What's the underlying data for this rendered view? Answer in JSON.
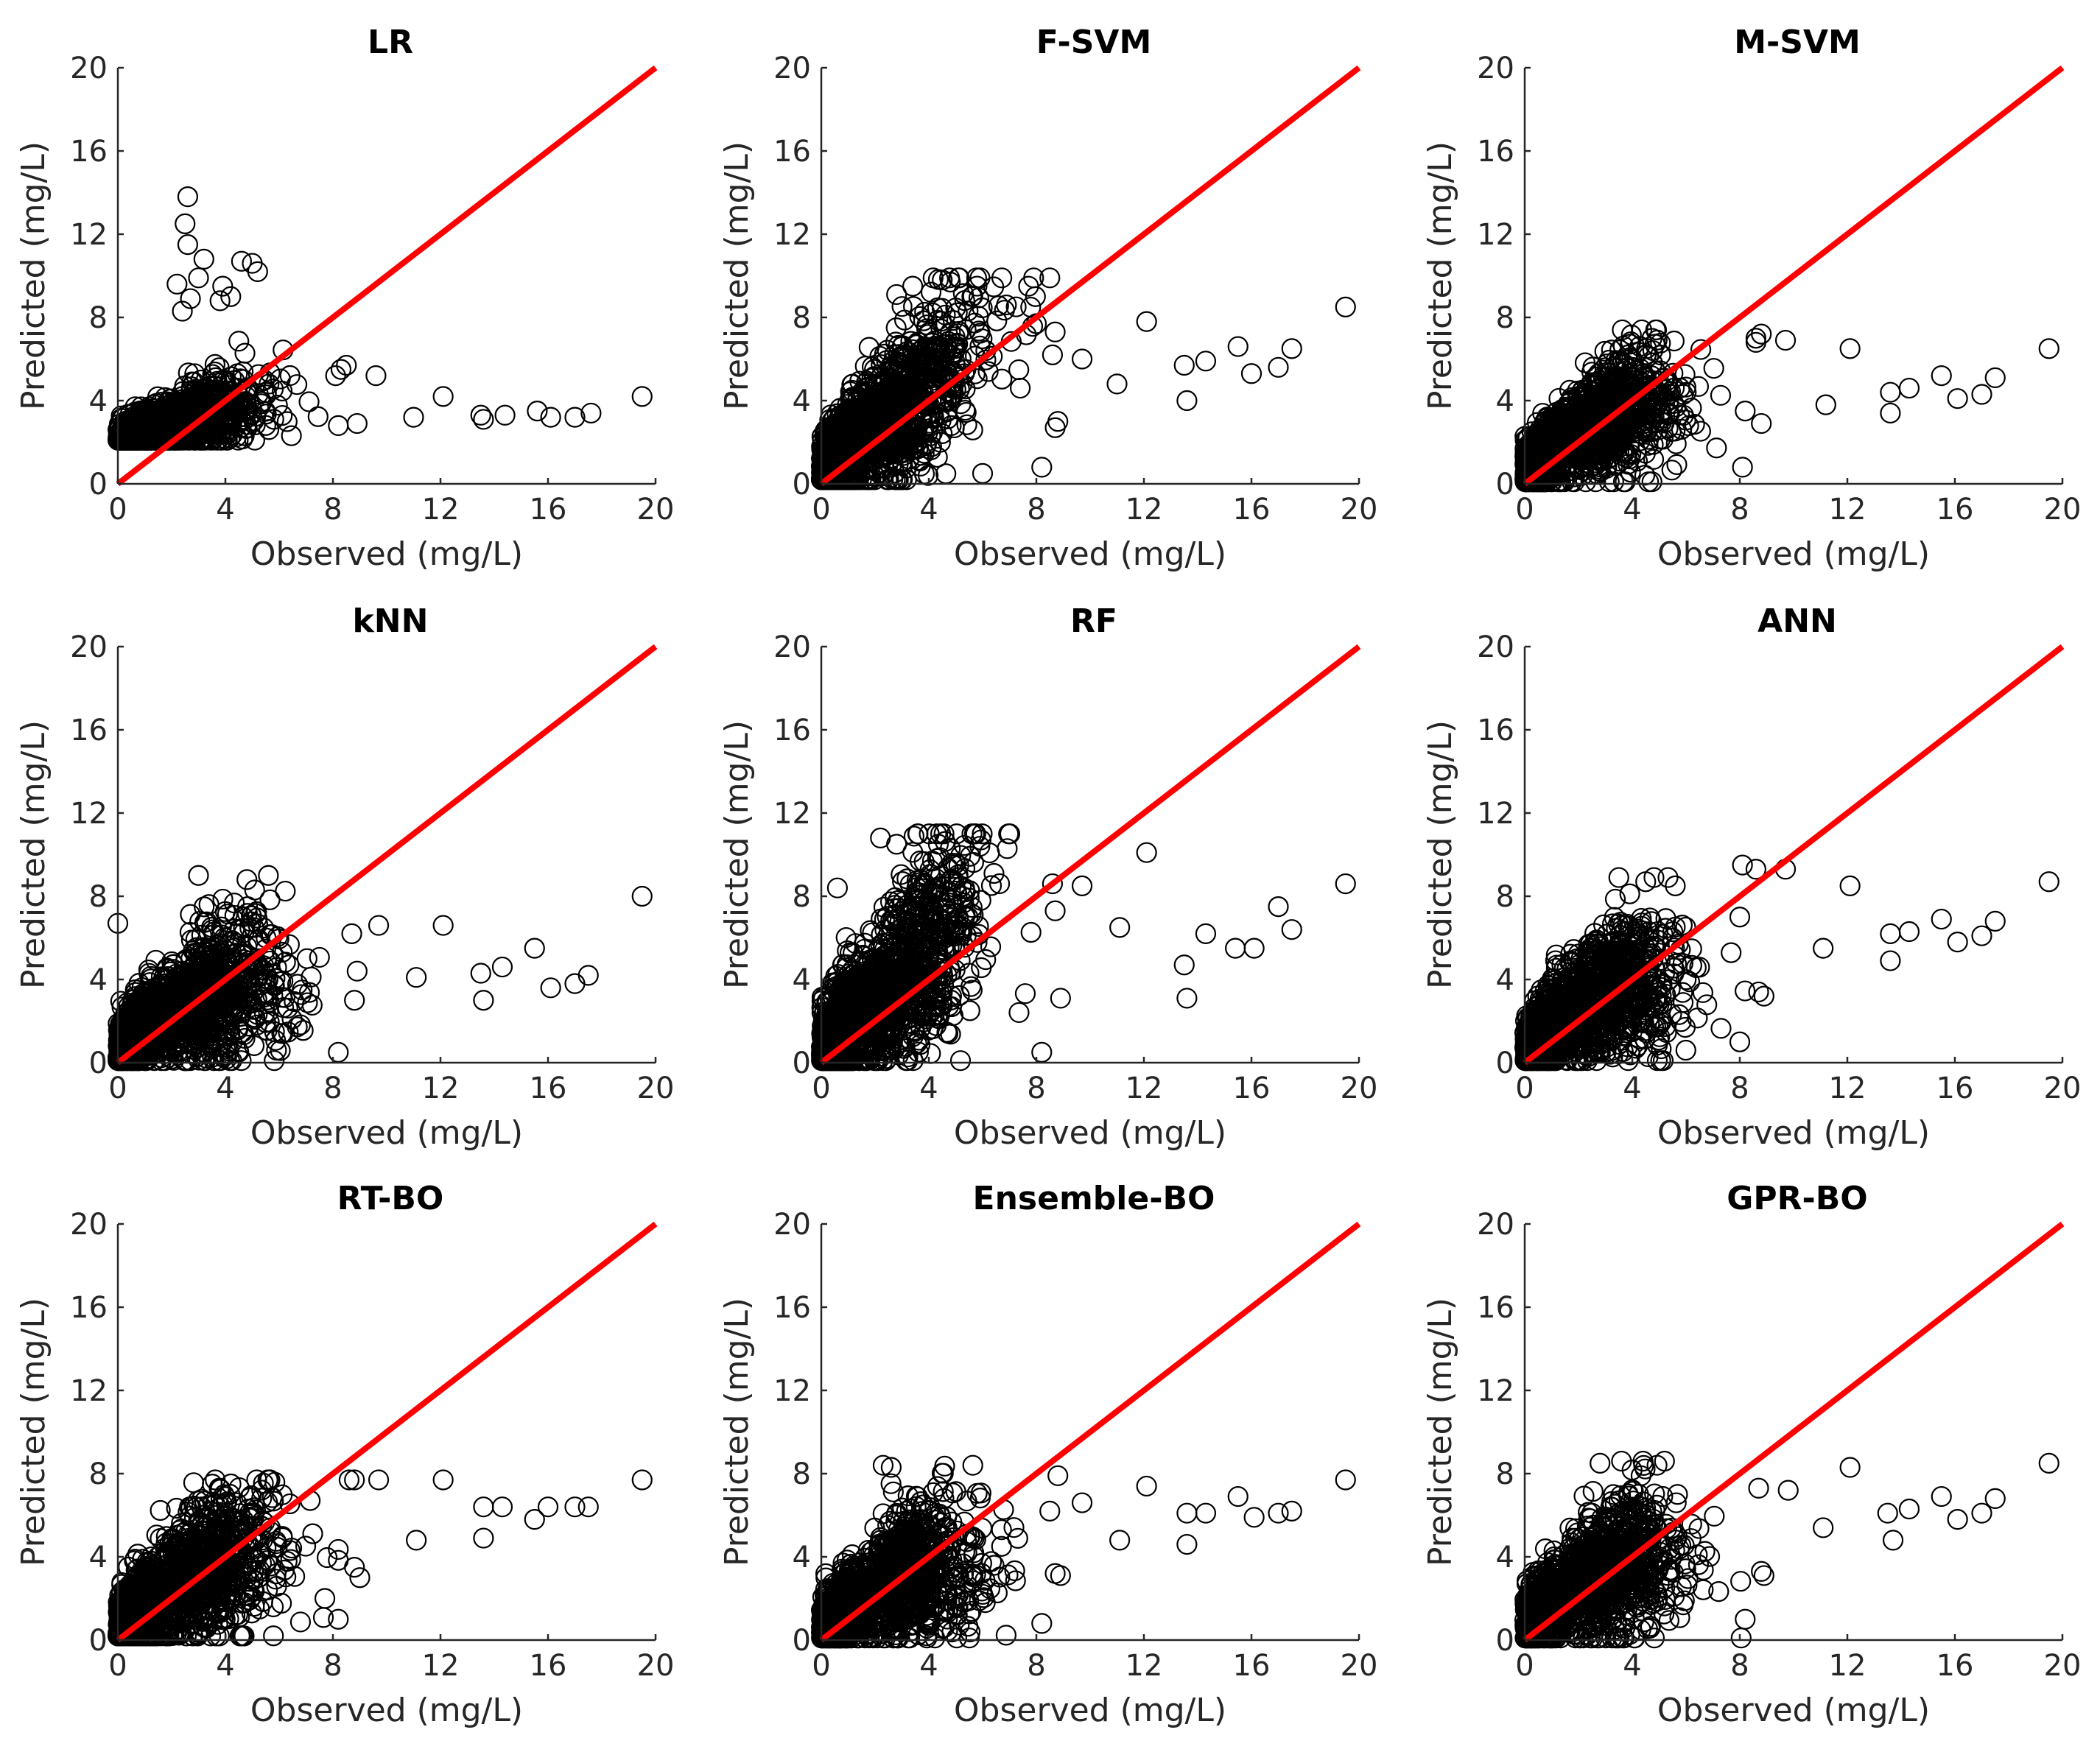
{
  "figure": {
    "marker": "open-circle",
    "marker_color": "#000000",
    "reference_line_color": "#ff0000"
  },
  "chart_data": [
    {
      "type": "scatter",
      "title": "LR",
      "xlabel": "Observed (mg/L)",
      "ylabel": "Predicted (mg/L)",
      "xlim": [
        0,
        20
      ],
      "ylim": [
        0,
        20
      ],
      "xticks": [
        "0",
        "4",
        "8",
        "12",
        "16",
        "20"
      ],
      "yticks": [
        "0",
        "4",
        "8",
        "12",
        "16",
        "20"
      ],
      "reference_line": {
        "x": [
          0,
          20
        ],
        "y": [
          0,
          20
        ]
      },
      "cloud": {
        "seed": 11,
        "n": 1300,
        "xcenter": 2.2,
        "xspread": 1.4,
        "xmax": 8.8,
        "base": 2.2,
        "slope": 0.35,
        "spread": 0.7,
        "ymin": 2.1,
        "ymax": 7.0,
        "model": "linear"
      },
      "points": [
        [
          2.6,
          13.8
        ],
        [
          2.5,
          12.5
        ],
        [
          2.6,
          11.5
        ],
        [
          3.2,
          10.8
        ],
        [
          4.6,
          10.7
        ],
        [
          5.0,
          10.6
        ],
        [
          5.2,
          10.2
        ],
        [
          3.0,
          9.9
        ],
        [
          3.9,
          9.5
        ],
        [
          2.2,
          9.6
        ],
        [
          2.7,
          8.9
        ],
        [
          2.4,
          8.3
        ],
        [
          3.8,
          8.8
        ],
        [
          4.2,
          9.0
        ],
        [
          8.3,
          5.5
        ],
        [
          8.5,
          5.7
        ],
        [
          8.1,
          5.2
        ],
        [
          9.6,
          5.2
        ],
        [
          11.0,
          3.2
        ],
        [
          12.1,
          4.2
        ],
        [
          13.5,
          3.3
        ],
        [
          13.6,
          3.1
        ],
        [
          14.4,
          3.3
        ],
        [
          15.6,
          3.5
        ],
        [
          16.1,
          3.2
        ],
        [
          17.0,
          3.2
        ],
        [
          17.6,
          3.4
        ],
        [
          19.5,
          4.2
        ],
        [
          8.2,
          2.8
        ],
        [
          8.9,
          2.9
        ]
      ]
    },
    {
      "type": "scatter",
      "title": "F-SVM",
      "xlabel": "Observed (mg/L)",
      "ylabel": "Predicted (mg/L)",
      "xlim": [
        0,
        20
      ],
      "ylim": [
        0,
        20
      ],
      "xticks": [
        "0",
        "4",
        "8",
        "12",
        "16",
        "20"
      ],
      "yticks": [
        "0",
        "4",
        "8",
        "12",
        "16",
        "20"
      ],
      "reference_line": {
        "x": [
          0,
          20
        ],
        "y": [
          0,
          20
        ]
      },
      "cloud": {
        "seed": 23,
        "n": 1400,
        "xcenter": 2.5,
        "xspread": 1.6,
        "xmax": 8.5,
        "base": 0.8,
        "slope": 1.0,
        "spread": 1.5,
        "ymin": 0.2,
        "ymax": 9.9,
        "model": "linear"
      },
      "points": [
        [
          4.5,
          9.8
        ],
        [
          4.8,
          9.7
        ],
        [
          3.4,
          9.5
        ],
        [
          5.6,
          9.0
        ],
        [
          2.8,
          9.1
        ],
        [
          8.7,
          7.3
        ],
        [
          8.0,
          7.7
        ],
        [
          8.6,
          6.2
        ],
        [
          9.7,
          6.0
        ],
        [
          11.0,
          4.8
        ],
        [
          12.1,
          7.8
        ],
        [
          13.5,
          5.7
        ],
        [
          13.6,
          4.0
        ],
        [
          14.3,
          5.9
        ],
        [
          15.5,
          6.6
        ],
        [
          16.0,
          5.3
        ],
        [
          17.0,
          5.6
        ],
        [
          17.5,
          6.5
        ],
        [
          19.5,
          8.5
        ],
        [
          8.2,
          0.8
        ],
        [
          8.7,
          2.7
        ],
        [
          8.8,
          3.0
        ],
        [
          6.0,
          0.5
        ],
        [
          7.4,
          4.6
        ]
      ]
    },
    {
      "type": "scatter",
      "title": "M-SVM",
      "xlabel": "Observed (mg/L)",
      "ylabel": "Predicted (mg/L)",
      "xlim": [
        0,
        20
      ],
      "ylim": [
        0,
        20
      ],
      "xticks": [
        "0",
        "4",
        "8",
        "12",
        "16",
        "20"
      ],
      "yticks": [
        "0",
        "4",
        "8",
        "12",
        "16",
        "20"
      ],
      "reference_line": {
        "x": [
          0,
          20
        ],
        "y": [
          0,
          20
        ]
      },
      "cloud": {
        "seed": 37,
        "n": 1400,
        "xcenter": 2.4,
        "xspread": 1.5,
        "xmax": 8.5,
        "base": 0.6,
        "slope": 1.2,
        "spread": 1.2,
        "ymin": 0.1,
        "ymax": 7.4,
        "model": "sat"
      },
      "points": [
        [
          8.6,
          6.8
        ],
        [
          8.8,
          7.2
        ],
        [
          8.6,
          7.0
        ],
        [
          9.7,
          6.9
        ],
        [
          11.2,
          3.8
        ],
        [
          12.1,
          6.5
        ],
        [
          13.6,
          4.4
        ],
        [
          13.6,
          3.4
        ],
        [
          14.3,
          4.6
        ],
        [
          15.5,
          5.2
        ],
        [
          16.1,
          4.1
        ],
        [
          17.0,
          4.3
        ],
        [
          17.5,
          5.1
        ],
        [
          19.5,
          6.5
        ],
        [
          8.1,
          0.8
        ],
        [
          8.8,
          2.9
        ],
        [
          8.2,
          3.5
        ]
      ]
    },
    {
      "type": "scatter",
      "title": "kNN",
      "xlabel": "Observed (mg/L)",
      "ylabel": "Predicted (mg/L)",
      "xlim": [
        0,
        20
      ],
      "ylim": [
        0,
        20
      ],
      "xticks": [
        "0",
        "4",
        "8",
        "12",
        "16",
        "20"
      ],
      "yticks": [
        "0",
        "4",
        "8",
        "12",
        "16",
        "20"
      ],
      "reference_line": {
        "x": [
          0,
          20
        ],
        "y": [
          0,
          20
        ]
      },
      "cloud": {
        "seed": 41,
        "n": 1500,
        "xcenter": 2.5,
        "xspread": 1.6,
        "xmax": 8.5,
        "base": 0.7,
        "slope": 1.1,
        "spread": 1.3,
        "ymin": 0.1,
        "ymax": 9.0,
        "model": "sat"
      },
      "points": [
        [
          0.0,
          6.7
        ],
        [
          4.8,
          8.8
        ],
        [
          5.6,
          9.0
        ],
        [
          3.0,
          9.0
        ],
        [
          8.7,
          6.2
        ],
        [
          8.9,
          4.4
        ],
        [
          9.7,
          6.6
        ],
        [
          11.1,
          4.1
        ],
        [
          12.1,
          6.6
        ],
        [
          13.5,
          4.3
        ],
        [
          13.6,
          3.0
        ],
        [
          14.3,
          4.6
        ],
        [
          15.5,
          5.5
        ],
        [
          16.1,
          3.6
        ],
        [
          17.0,
          3.8
        ],
        [
          17.5,
          4.2
        ],
        [
          19.5,
          8.0
        ],
        [
          8.2,
          0.5
        ],
        [
          8.8,
          3.0
        ],
        [
          5.9,
          0.6
        ]
      ]
    },
    {
      "type": "scatter",
      "title": "RF",
      "xlabel": "Observed (mg/L)",
      "ylabel": "Predicted (mg/L)",
      "xlim": [
        0,
        20
      ],
      "ylim": [
        0,
        20
      ],
      "xticks": [
        "0",
        "4",
        "8",
        "12",
        "16",
        "20"
      ],
      "yticks": [
        "0",
        "4",
        "8",
        "12",
        "16",
        "20"
      ],
      "reference_line": {
        "x": [
          0,
          20
        ],
        "y": [
          0,
          20
        ]
      },
      "cloud": {
        "seed": 53,
        "n": 1500,
        "xcenter": 2.5,
        "xspread": 1.6,
        "xmax": 8.5,
        "base": 0.6,
        "slope": 1.2,
        "spread": 1.9,
        "ymin": 0.1,
        "ymax": 11.0,
        "model": "linear"
      },
      "points": [
        [
          0.6,
          8.4
        ],
        [
          2.2,
          10.8
        ],
        [
          3.6,
          11.0
        ],
        [
          5.9,
          10.4
        ],
        [
          2.8,
          10.5
        ],
        [
          4.8,
          10.3
        ],
        [
          8.6,
          8.6
        ],
        [
          9.7,
          8.5
        ],
        [
          8.7,
          7.3
        ],
        [
          11.1,
          6.5
        ],
        [
          12.1,
          10.1
        ],
        [
          13.5,
          4.7
        ],
        [
          13.6,
          3.1
        ],
        [
          14.3,
          6.2
        ],
        [
          15.4,
          5.5
        ],
        [
          16.1,
          5.5
        ],
        [
          17.0,
          7.5
        ],
        [
          17.5,
          6.4
        ],
        [
          19.5,
          8.6
        ],
        [
          8.2,
          0.5
        ],
        [
          8.9,
          3.1
        ]
      ]
    },
    {
      "type": "scatter",
      "title": "ANN",
      "xlabel": "Observed (mg/L)",
      "ylabel": "Predicted (mg/L)",
      "xlim": [
        0,
        20
      ],
      "ylim": [
        0,
        20
      ],
      "xticks": [
        "0",
        "4",
        "8",
        "12",
        "16",
        "20"
      ],
      "yticks": [
        "0",
        "4",
        "8",
        "12",
        "16",
        "20"
      ],
      "reference_line": {
        "x": [
          0,
          20
        ],
        "y": [
          0,
          20
        ]
      },
      "cloud": {
        "seed": 67,
        "n": 1400,
        "xcenter": 2.5,
        "xspread": 1.5,
        "xmax": 8.5,
        "base": 0.7,
        "slope": 1.2,
        "spread": 1.4,
        "ymin": 0.1,
        "ymax": 8.9,
        "model": "sat"
      },
      "points": [
        [
          3.5,
          8.9
        ],
        [
          4.5,
          8.7
        ],
        [
          5.6,
          8.5
        ],
        [
          8.0,
          7.0
        ],
        [
          8.1,
          9.5
        ],
        [
          8.6,
          9.3
        ],
        [
          9.7,
          9.3
        ],
        [
          11.1,
          5.5
        ],
        [
          12.1,
          8.5
        ],
        [
          13.6,
          6.2
        ],
        [
          13.6,
          4.9
        ],
        [
          14.3,
          6.3
        ],
        [
          15.5,
          6.9
        ],
        [
          16.1,
          5.8
        ],
        [
          17.0,
          6.1
        ],
        [
          17.5,
          6.8
        ],
        [
          19.5,
          8.7
        ],
        [
          8.0,
          1.0
        ],
        [
          8.7,
          3.4
        ],
        [
          8.9,
          3.2
        ]
      ]
    },
    {
      "type": "scatter",
      "title": "RT-BO",
      "xlabel": "Observed (mg/L)",
      "ylabel": "Predicted (mg/L)",
      "xlim": [
        0,
        20
      ],
      "ylim": [
        0,
        20
      ],
      "xticks": [
        "0",
        "4",
        "8",
        "12",
        "16",
        "20"
      ],
      "yticks": [
        "0",
        "4",
        "8",
        "12",
        "16",
        "20"
      ],
      "reference_line": {
        "x": [
          0,
          20
        ],
        "y": [
          0,
          20
        ]
      },
      "cloud": {
        "seed": 79,
        "n": 1400,
        "xcenter": 2.5,
        "xspread": 1.5,
        "xmax": 8.2,
        "base": 0.6,
        "slope": 1.2,
        "spread": 1.4,
        "ymin": 0.2,
        "ymax": 7.7,
        "model": "sat"
      },
      "points": [
        [
          8.6,
          7.7
        ],
        [
          8.8,
          7.7
        ],
        [
          9.7,
          7.7
        ],
        [
          11.1,
          4.8
        ],
        [
          12.1,
          7.7
        ],
        [
          13.6,
          6.4
        ],
        [
          13.6,
          4.9
        ],
        [
          14.3,
          6.4
        ],
        [
          15.5,
          5.8
        ],
        [
          16.0,
          6.4
        ],
        [
          17.0,
          6.4
        ],
        [
          17.5,
          6.4
        ],
        [
          19.5,
          7.7
        ],
        [
          8.2,
          1.0
        ],
        [
          8.8,
          3.5
        ],
        [
          9.0,
          3.0
        ],
        [
          7.7,
          2.0
        ]
      ]
    },
    {
      "type": "scatter",
      "title": "Ensemble-BO",
      "xlabel": "Observed (mg/L)",
      "ylabel": "Predicted (mg/L)",
      "xlim": [
        0,
        20
      ],
      "ylim": [
        0,
        20
      ],
      "xticks": [
        "0",
        "4",
        "8",
        "12",
        "16",
        "20"
      ],
      "yticks": [
        "0",
        "4",
        "8",
        "12",
        "16",
        "20"
      ],
      "reference_line": {
        "x": [
          0,
          20
        ],
        "y": [
          0,
          20
        ]
      },
      "cloud": {
        "seed": 83,
        "n": 1400,
        "xcenter": 2.5,
        "xspread": 1.5,
        "xmax": 8.3,
        "base": 0.7,
        "slope": 1.1,
        "spread": 1.3,
        "ymin": 0.1,
        "ymax": 8.4,
        "model": "sat"
      },
      "points": [
        [
          2.3,
          8.4
        ],
        [
          2.6,
          8.3
        ],
        [
          8.8,
          7.9
        ],
        [
          8.5,
          6.2
        ],
        [
          9.7,
          6.6
        ],
        [
          11.1,
          4.8
        ],
        [
          12.1,
          7.4
        ],
        [
          13.6,
          6.1
        ],
        [
          13.6,
          4.6
        ],
        [
          14.3,
          6.1
        ],
        [
          15.5,
          6.9
        ],
        [
          16.1,
          5.9
        ],
        [
          17.0,
          6.1
        ],
        [
          17.5,
          6.2
        ],
        [
          19.5,
          7.7
        ],
        [
          8.2,
          0.8
        ],
        [
          8.7,
          3.2
        ],
        [
          8.9,
          3.1
        ],
        [
          6.1,
          1.8
        ]
      ]
    },
    {
      "type": "scatter",
      "title": "GPR-BO",
      "xlabel": "Observed (mg/L)",
      "ylabel": "Predicted (mg/L)",
      "xlim": [
        0,
        20
      ],
      "ylim": [
        0,
        20
      ],
      "xticks": [
        "0",
        "4",
        "8",
        "12",
        "16",
        "20"
      ],
      "yticks": [
        "0",
        "4",
        "8",
        "12",
        "16",
        "20"
      ],
      "reference_line": {
        "x": [
          0,
          20
        ],
        "y": [
          0,
          20
        ]
      },
      "cloud": {
        "seed": 97,
        "n": 1400,
        "xcenter": 2.5,
        "xspread": 1.5,
        "xmax": 8.5,
        "base": 0.7,
        "slope": 1.2,
        "spread": 1.4,
        "ymin": 0.1,
        "ymax": 8.6,
        "model": "sat"
      },
      "points": [
        [
          3.6,
          8.6
        ],
        [
          4.4,
          8.6
        ],
        [
          5.2,
          8.6
        ],
        [
          2.8,
          8.5
        ],
        [
          8.7,
          7.3
        ],
        [
          9.8,
          7.2
        ],
        [
          11.1,
          5.4
        ],
        [
          12.1,
          8.3
        ],
        [
          13.5,
          6.1
        ],
        [
          13.7,
          4.8
        ],
        [
          14.3,
          6.3
        ],
        [
          15.5,
          6.9
        ],
        [
          16.1,
          5.8
        ],
        [
          17.0,
          6.1
        ],
        [
          17.5,
          6.8
        ],
        [
          19.5,
          8.5
        ],
        [
          8.2,
          1.0
        ],
        [
          8.8,
          3.3
        ],
        [
          8.9,
          3.1
        ]
      ]
    }
  ]
}
